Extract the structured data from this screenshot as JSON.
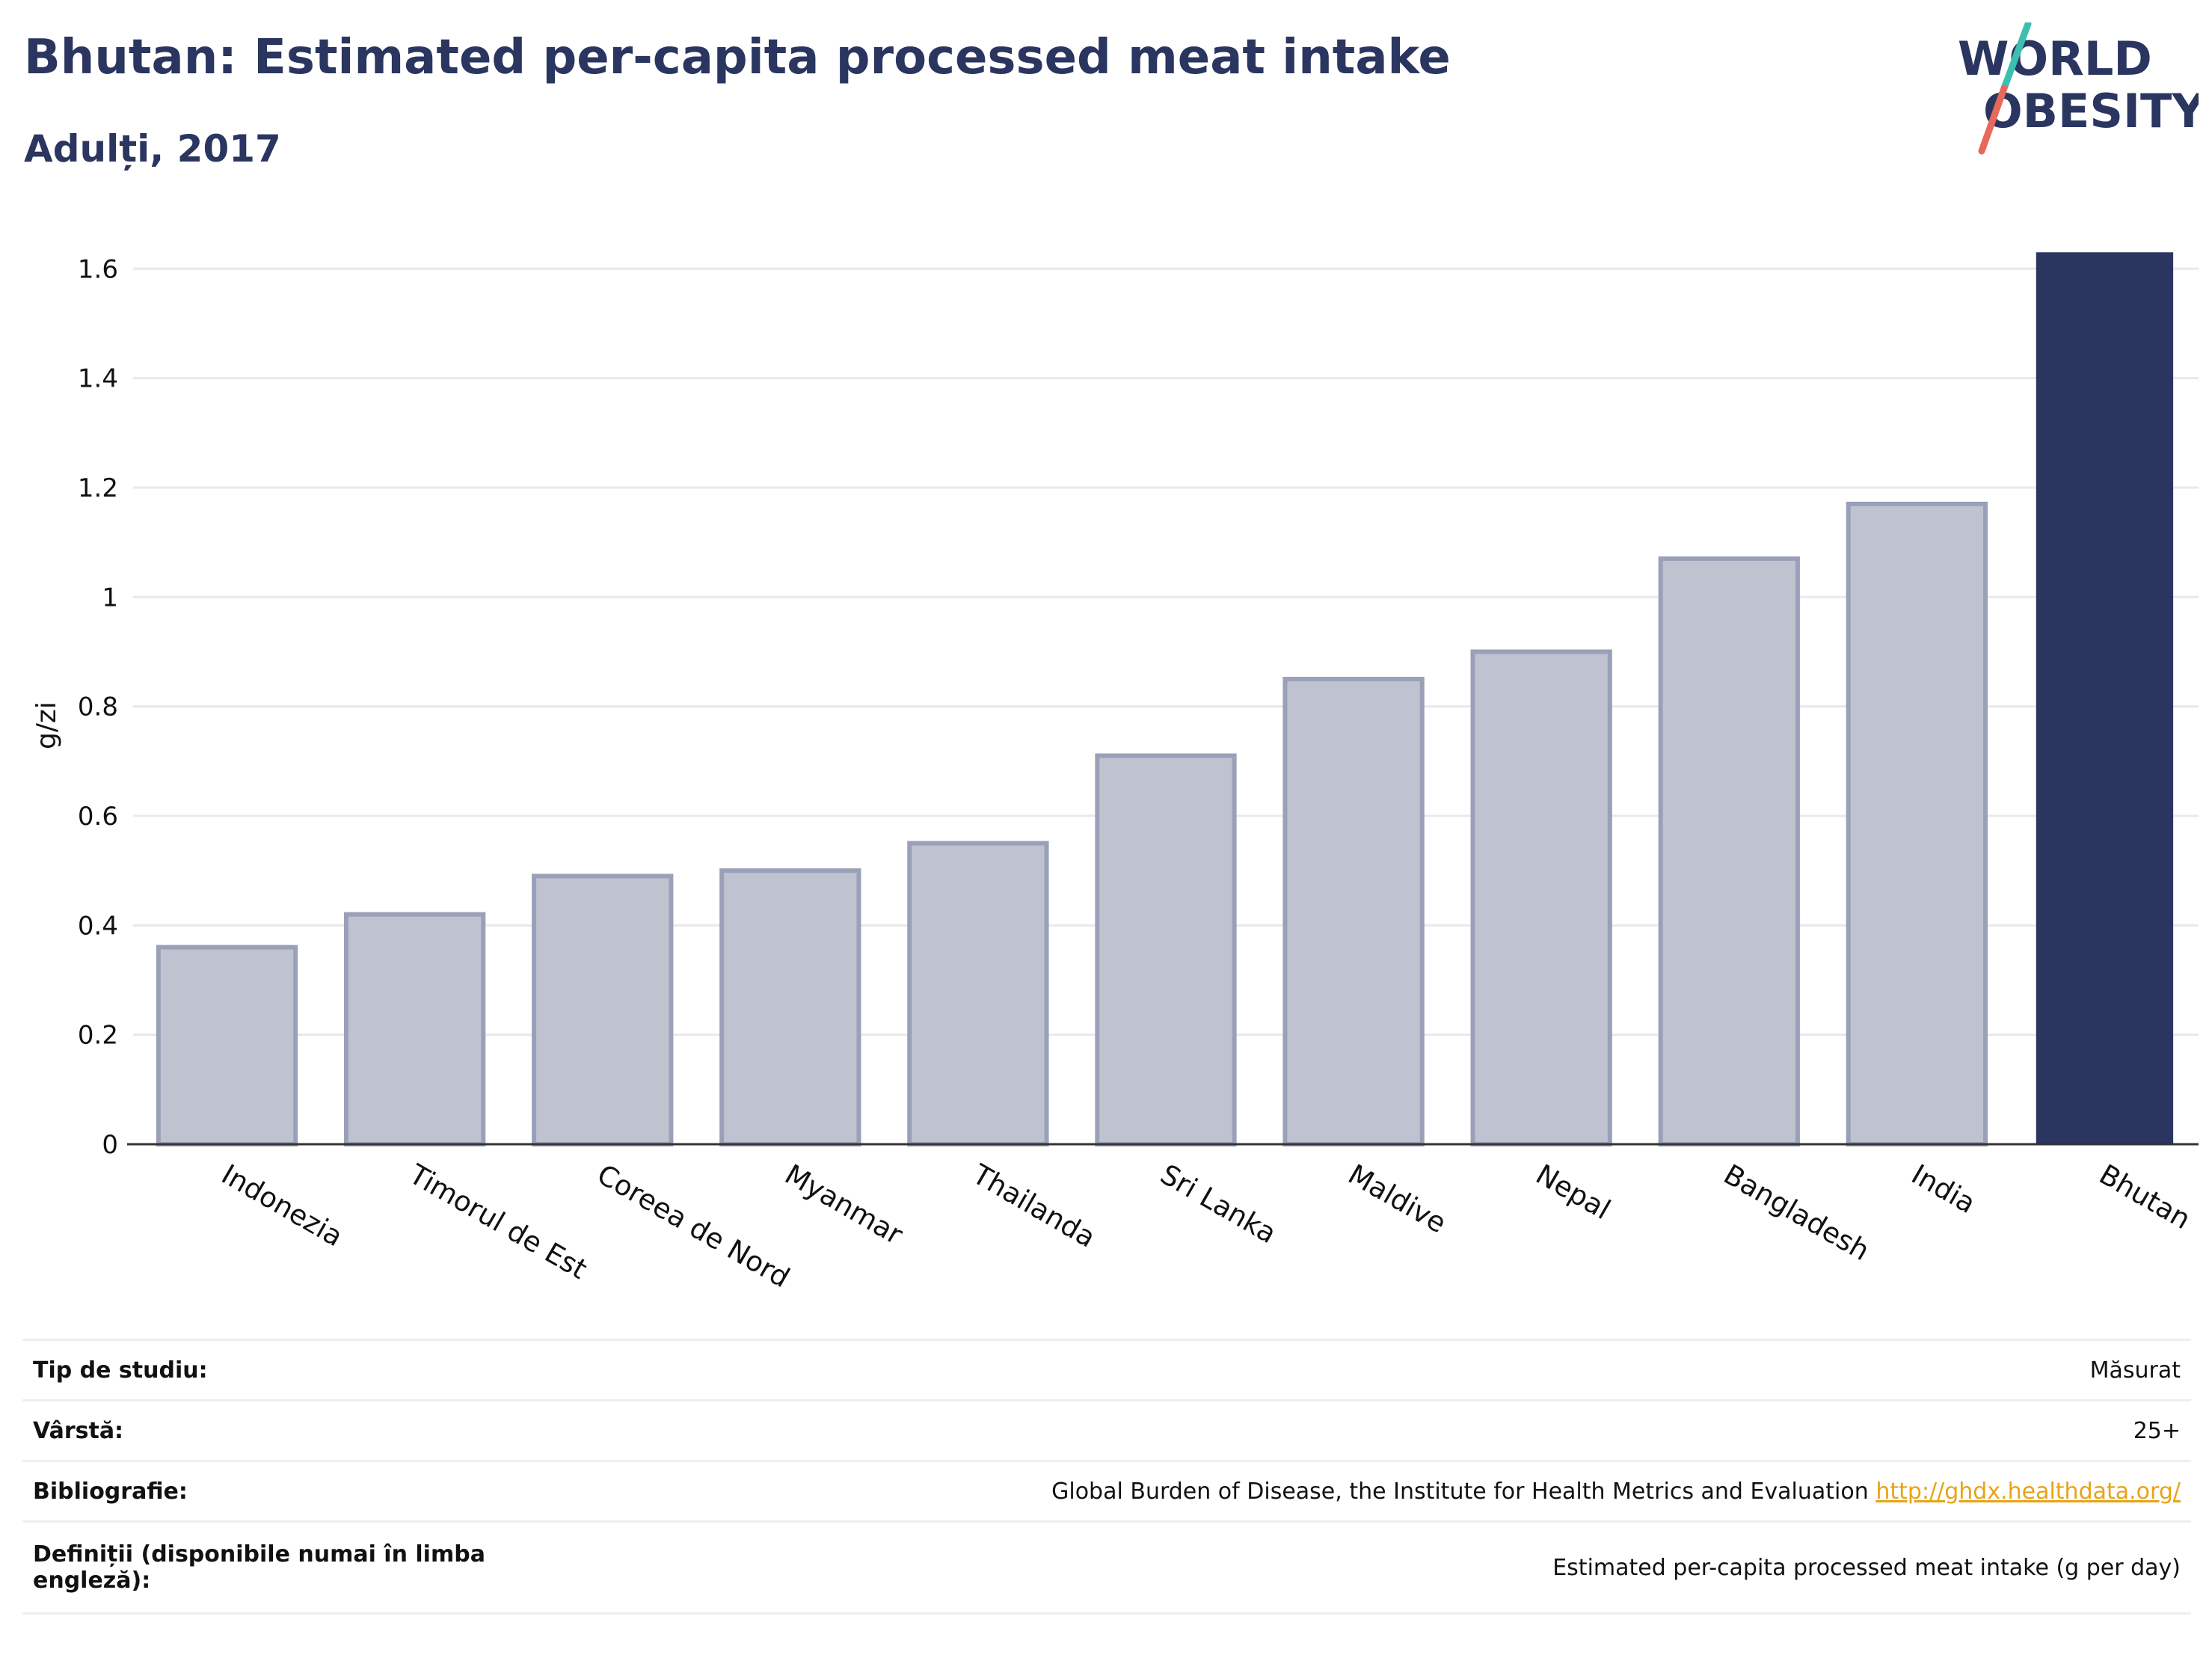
{
  "header": {
    "title": "Bhutan: Estimated per-capita processed meat intake",
    "subtitle": "Adulți, 2017"
  },
  "logo": {
    "line1": "WORLD",
    "line2": "OBESITY"
  },
  "colors": {
    "highlight": "#2a3560",
    "bar_fill": "#bfc3d0",
    "bar_stroke": "#9aa0b8",
    "grid": "#e8e8ee",
    "logo_teal": "#3dbfb0",
    "logo_coral": "#e8685a",
    "link": "#e8a317"
  },
  "chart_data": {
    "type": "bar",
    "categories": [
      "Indonezia",
      "Timorul de Est",
      "Coreea de Nord",
      "Myanmar",
      "Thailanda",
      "Sri Lanka",
      "Maldive",
      "Nepal",
      "Bangladesh",
      "India",
      "Bhutan"
    ],
    "values": [
      0.36,
      0.42,
      0.49,
      0.5,
      0.55,
      0.71,
      0.85,
      0.9,
      1.07,
      1.17,
      1.63
    ],
    "highlight": "Bhutan",
    "ylabel": "g/zi",
    "ylim": [
      0,
      1.64
    ],
    "yticks": [
      0,
      0.2,
      0.4,
      0.6,
      0.8,
      1,
      1.2,
      1.4,
      1.6
    ],
    "ytick_labels": [
      "0",
      "0.2",
      "0.4",
      "0.6",
      "0.8",
      "1",
      "1.2",
      "1.4",
      "1.6"
    ],
    "grid": true
  },
  "meta": [
    {
      "key": "Tip de studiu:",
      "value": "Măsurat"
    },
    {
      "key": "Vârstă:",
      "value": "25+"
    },
    {
      "key": "Bibliografie:",
      "value": "Global Burden of Disease, the Institute for Health Metrics and Evaluation",
      "link": "http://ghdx.healthdata.org/"
    },
    {
      "key": "Definiții (disponibile numai în limba engleză):",
      "value": "Estimated per-capita processed meat intake (g per day)"
    }
  ]
}
